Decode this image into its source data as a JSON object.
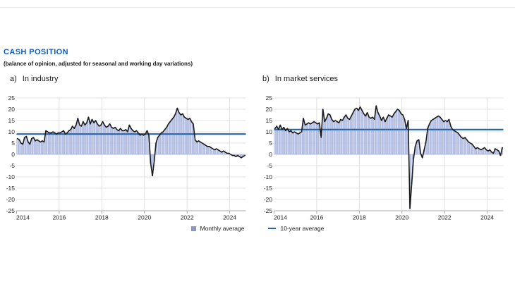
{
  "page": {
    "title": "CASH POSITION",
    "subtitle": "(balance of opinion, adjusted for seasonal and working day variations)"
  },
  "legend": {
    "monthly_label": "Monthly average",
    "ten_year_label": "10-year average"
  },
  "colors": {
    "title_blue": "#0e5cc4",
    "bar_fill": "#dce2f4",
    "bar_stroke": "#8f9ed2",
    "data_line": "#1a1a1a",
    "avg_line": "#2565ae",
    "grid": "#d6d6d6",
    "axis": "#a8a8a8",
    "tick_text": "#262626",
    "legend_square": "#8d96cb"
  },
  "chart_data": [
    {
      "type": "bar+line",
      "panel_prefix": "a)",
      "panel_title": "In industry",
      "x_start_year": 2014,
      "x_start_month": 1,
      "x_tick_years": [
        2014,
        2016,
        2018,
        2020,
        2022,
        2024
      ],
      "ylim": [
        -25,
        25
      ],
      "y_ticks": [
        25,
        20,
        15,
        10,
        5,
        0,
        -5,
        -10,
        -15,
        -20,
        -25
      ],
      "grid": true,
      "legend_position": "bottom",
      "series": [
        {
          "name": "Monthly average",
          "type": "bar",
          "values": [
            7,
            6.5,
            5,
            4.5,
            7.5,
            8,
            5.5,
            4.5,
            7,
            7.5,
            6,
            6.5,
            6,
            5.5,
            6,
            5.5,
            10.5,
            10,
            9.5,
            9.5,
            10,
            9.5,
            9,
            9.5,
            9.5,
            10,
            10.5,
            9,
            9.5,
            10.5,
            11,
            12.5,
            11.5,
            13,
            16,
            13,
            12.5,
            14.5,
            13,
            14,
            16.5,
            13.5,
            15.5,
            14,
            15,
            13.5,
            12.5,
            13,
            14.5,
            13,
            12,
            12.5,
            13.5,
            12,
            11.5,
            12,
            11,
            10.5,
            11.5,
            10.5,
            10.5,
            11,
            10,
            13,
            11.5,
            10.5,
            10,
            10.5,
            9.5,
            8.5,
            9,
            8.5,
            9,
            10.5,
            8.5,
            -4,
            -9.5,
            -3,
            5,
            7.5,
            8.5,
            9.5,
            10,
            11,
            12,
            13.5,
            14.5,
            15.5,
            16.5,
            18,
            20.5,
            18.5,
            17.5,
            18,
            16.5,
            16,
            15.5,
            16,
            14.5,
            13.5,
            6.5,
            5.5,
            6,
            5.5,
            5,
            4.5,
            4,
            3.5,
            3.5,
            3,
            2.5,
            2,
            2.5,
            2,
            1.5,
            1,
            1.5,
            1,
            0.5,
            0.5,
            0,
            -0.5,
            -0.5,
            -1,
            -0.5,
            -1,
            -1.5,
            -1,
            -0.5
          ]
        },
        {
          "name": "10-year average",
          "type": "line",
          "value": 9
        }
      ]
    },
    {
      "type": "bar+line",
      "panel_prefix": "b)",
      "panel_title": "In market services",
      "x_start_year": 2014,
      "x_start_month": 1,
      "x_tick_years": [
        2014,
        2016,
        2018,
        2020,
        2022,
        2024
      ],
      "ylim": [
        -25,
        25
      ],
      "y_ticks": [
        25,
        20,
        15,
        10,
        5,
        0,
        -5,
        -10,
        -15,
        -20,
        -25
      ],
      "grid": true,
      "legend_position": "bottom",
      "series": [
        {
          "name": "Monthly average",
          "type": "bar",
          "values": [
            11.5,
            12.5,
            11,
            13,
            11,
            12,
            10.5,
            11.5,
            10,
            10.5,
            9.5,
            10,
            9.5,
            9,
            9.5,
            10,
            16,
            13,
            13.5,
            14,
            13.5,
            14,
            14.5,
            14,
            13.5,
            14,
            7.5,
            20,
            14.5,
            16,
            18,
            17.5,
            15.5,
            14.5,
            15,
            14.5,
            14,
            15.5,
            15,
            16.5,
            17.5,
            16,
            15.5,
            17,
            18.5,
            20,
            20.5,
            19.5,
            21,
            19.5,
            18,
            17,
            18.5,
            16.5,
            16,
            16.5,
            15.5,
            21.5,
            18.5,
            17,
            15,
            16.5,
            14.5,
            16,
            17.5,
            17,
            16.5,
            18,
            19,
            20,
            19.5,
            18,
            17.5,
            15.5,
            11.5,
            15,
            -24,
            -13,
            -2,
            3.5,
            6,
            6.5,
            0.5,
            -1.5,
            2,
            5.5,
            11.5,
            13.5,
            15,
            15.5,
            16,
            16.5,
            17,
            16.5,
            15.5,
            14.5,
            15,
            14.5,
            15.5,
            12.5,
            11,
            10.5,
            10,
            9.5,
            8.5,
            7.5,
            7,
            7.5,
            6.5,
            5.5,
            5,
            4.5,
            3.5,
            2.5,
            3,
            2.5,
            2,
            2.5,
            3,
            2,
            1.5,
            2,
            1,
            0.5,
            2.5,
            2,
            1.5,
            -0.5,
            3
          ]
        },
        {
          "name": "10-year average",
          "type": "line",
          "value": 11
        }
      ]
    }
  ]
}
